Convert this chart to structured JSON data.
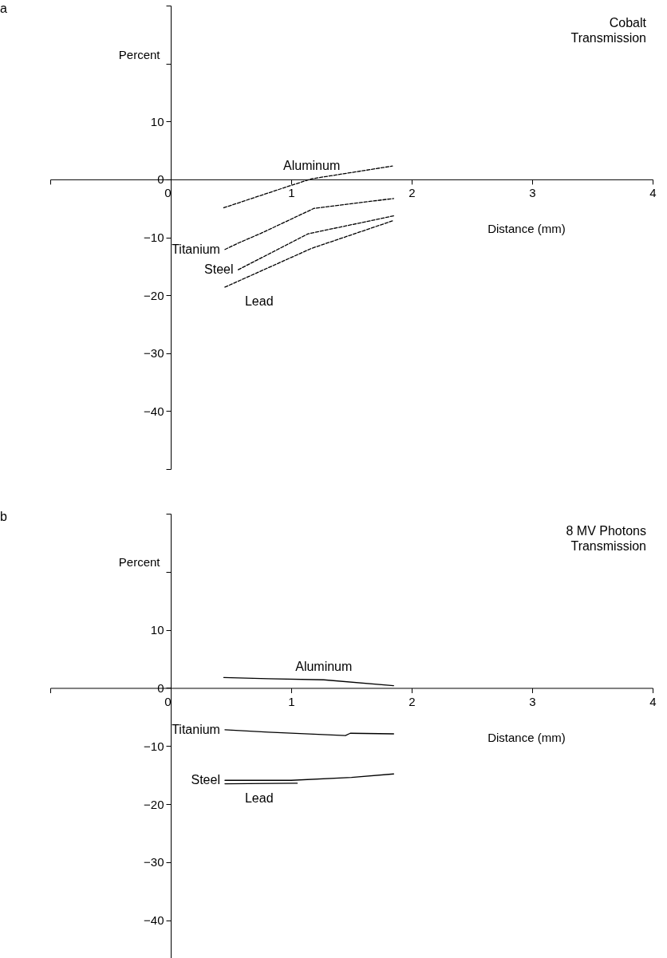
{
  "chart_data": [
    {
      "type": "line",
      "title": "Cobalt Transmission",
      "xlabel": "Distance (mm)",
      "ylabel": "Percent",
      "annotations": [
        "a"
      ],
      "xlim": [
        -1,
        4
      ],
      "ylim": [
        -50,
        30
      ],
      "xticks": [
        {
          "value": -1,
          "label": null
        },
        0,
        1,
        2,
        3,
        4
      ],
      "yticks": [
        {
          "value": -50,
          "label": null
        },
        -40,
        -30,
        -20,
        -10,
        0,
        10,
        {
          "value": 20,
          "label": null
        },
        {
          "value": 30,
          "label": null
        }
      ],
      "grid": false,
      "marker": "none",
      "line_style": "dashed",
      "series": [
        {
          "name": "Aluminum",
          "color": "#000000",
          "x": [
            0.44,
            0.99,
            1.17,
            1.84
          ],
          "values": [
            -4.9,
            -1.1,
            0.1,
            2.3
          ]
        },
        {
          "name": "Titanium",
          "color": "#000000",
          "x": [
            0.45,
            0.56,
            0.75,
            1.19,
            1.85
          ],
          "values": [
            -12.1,
            -11.0,
            -9.3,
            -5.0,
            -3.3
          ]
        },
        {
          "name": "Steel",
          "color": "#000000",
          "x": [
            0.56,
            1.14,
            1.85
          ],
          "values": [
            -15.6,
            -9.4,
            -6.3
          ]
        },
        {
          "name": "Lead",
          "color": "#000000",
          "x": [
            0.45,
            1.17,
            1.85
          ],
          "values": [
            -18.6,
            -11.9,
            -7.1
          ]
        }
      ]
    },
    {
      "type": "line",
      "title": "8 MV Photons Transmission",
      "xlabel": "Distance (mm)",
      "ylabel": "Percent",
      "annotations": [
        "b"
      ],
      "xlim": [
        -1,
        4
      ],
      "ylim": [
        -48,
        30
      ],
      "xticks": [
        {
          "value": -1,
          "label": null
        },
        0,
        1,
        2,
        3,
        4
      ],
      "yticks": [
        -40,
        -30,
        -20,
        -10,
        0,
        10,
        {
          "value": 20,
          "label": null
        },
        {
          "value": 30,
          "label": null
        }
      ],
      "grid": false,
      "marker": "none",
      "line_style": "solid",
      "series": [
        {
          "name": "Aluminum",
          "color": "#000000",
          "x": [
            0.44,
            0.81,
            1.27,
            1.85
          ],
          "values": [
            1.8,
            1.6,
            1.4,
            0.4
          ]
        },
        {
          "name": "Titanium",
          "color": "#000000",
          "x": [
            0.45,
            0.81,
            1.45,
            1.49,
            1.85
          ],
          "values": [
            -7.2,
            -7.6,
            -8.2,
            -7.8,
            -7.9
          ]
        },
        {
          "name": "Steel",
          "color": "#000000",
          "x": [
            0.45,
            1.0,
            1.5,
            1.85
          ],
          "values": [
            -15.9,
            -15.9,
            -15.4,
            -14.8
          ]
        },
        {
          "name": "Lead",
          "color": "#000000",
          "x": [
            0.45,
            1.05
          ],
          "values": [
            -16.5,
            -16.4
          ]
        }
      ]
    }
  ]
}
